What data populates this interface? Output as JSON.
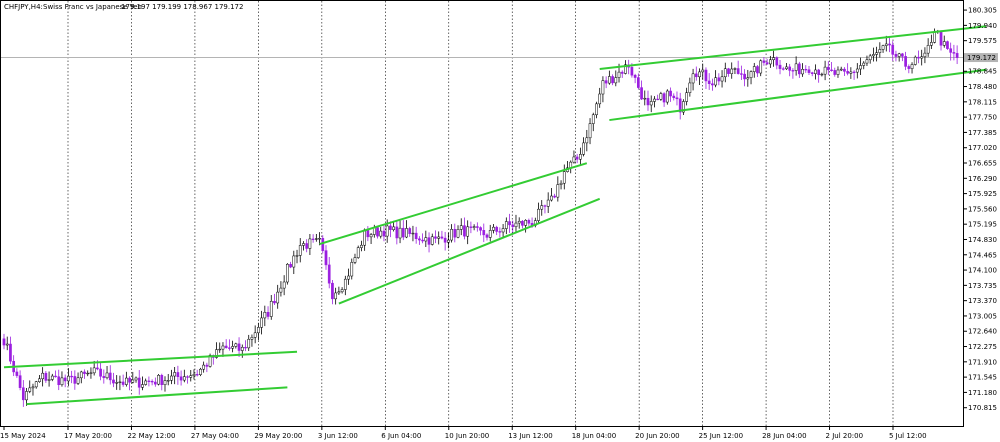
{
  "header": {
    "symbol": "CHFJPY,H4:",
    "description": "Swiss Franc vs Japanese Yen",
    "ohlc": "179.197 179.199 178.967 179.172"
  },
  "chart_data": {
    "type": "candlestick",
    "symbol": "CHFJPY",
    "timeframe": "H4",
    "title": "CHFJPY,H4:  Swiss Franc vs Japanese Yen",
    "last_price": 179.172,
    "last_price_label": "179.172",
    "ylim": [
      170.45,
      180.45
    ],
    "y_ticks": [
      "180.305",
      "179.940",
      "179.575",
      "179.210",
      "178.845",
      "178.480",
      "178.115",
      "177.750",
      "177.385",
      "177.020",
      "176.655",
      "176.290",
      "175.925",
      "175.560",
      "175.195",
      "174.830",
      "174.465",
      "174.100",
      "173.735",
      "173.370",
      "173.005",
      "172.640",
      "172.275",
      "171.910",
      "171.545",
      "171.180",
      "170.815"
    ],
    "x_ticks": [
      "15 May 2024",
      "17 May 20:00",
      "22 May 12:00",
      "27 May 04:00",
      "29 May 20:00",
      "3 Jun 12:00",
      "6 Jun 04:00",
      "10 Jun 20:00",
      "13 Jun 12:00",
      "18 Jun 04:00",
      "20 Jun 20:00",
      "25 Jun 12:00",
      "28 Jun 04:00",
      "2 Jul 20:00",
      "5 Jul 12:00"
    ],
    "grid": "vertical dotted at each date tick",
    "colors": {
      "bull": "#ffffff",
      "bear": "#9b1fe0",
      "outline": "#000000",
      "trendline": "#33cc33",
      "price_line": "#b4b4b4",
      "price_label_bg": "#b4b4b4"
    },
    "waypoints": [
      [
        0,
        172.45
      ],
      [
        3,
        171.75
      ],
      [
        6,
        171.05
      ],
      [
        12,
        171.55
      ],
      [
        20,
        171.45
      ],
      [
        28,
        171.65
      ],
      [
        38,
        171.4
      ],
      [
        46,
        171.45
      ],
      [
        54,
        171.55
      ],
      [
        60,
        171.65
      ],
      [
        68,
        172.25
      ],
      [
        74,
        172.2
      ],
      [
        82,
        173.1
      ],
      [
        88,
        174.1
      ],
      [
        92,
        174.7
      ],
      [
        98,
        174.75
      ],
      [
        102,
        173.55
      ],
      [
        106,
        173.85
      ],
      [
        112,
        174.95
      ],
      [
        118,
        175.05
      ],
      [
        126,
        174.95
      ],
      [
        134,
        174.8
      ],
      [
        142,
        175.05
      ],
      [
        150,
        174.95
      ],
      [
        156,
        175.15
      ],
      [
        164,
        175.25
      ],
      [
        170,
        175.75
      ],
      [
        174,
        176.45
      ],
      [
        178,
        176.75
      ],
      [
        182,
        177.55
      ],
      [
        186,
        178.55
      ],
      [
        190,
        178.75
      ],
      [
        194,
        179.0
      ],
      [
        200,
        177.95
      ],
      [
        206,
        178.3
      ],
      [
        210,
        178.0
      ],
      [
        214,
        178.9
      ],
      [
        220,
        178.6
      ],
      [
        226,
        178.85
      ],
      [
        232,
        178.75
      ],
      [
        238,
        179.2
      ],
      [
        244,
        178.85
      ],
      [
        250,
        178.95
      ],
      [
        256,
        178.8
      ],
      [
        262,
        178.75
      ],
      [
        268,
        179.1
      ],
      [
        274,
        179.4
      ],
      [
        280,
        179.0
      ],
      [
        286,
        179.15
      ],
      [
        289,
        179.85
      ],
      [
        293,
        179.3
      ],
      [
        296,
        179.17
      ]
    ],
    "trendlines": [
      {
        "name": "channel-1-upper",
        "from": {
          "bar": 0,
          "price": 171.78
        },
        "to": {
          "bar": 91,
          "price": 172.15
        }
      },
      {
        "name": "channel-1-lower",
        "from": {
          "bar": 7,
          "price": 170.9
        },
        "to": {
          "bar": 88,
          "price": 171.3
        }
      },
      {
        "name": "channel-2-upper",
        "from": {
          "bar": 98,
          "price": 174.72
        },
        "to": {
          "bar": 181,
          "price": 176.65
        }
      },
      {
        "name": "channel-2-lower",
        "from": {
          "bar": 104,
          "price": 173.3
        },
        "to": {
          "bar": 185,
          "price": 175.8
        }
      },
      {
        "name": "channel-3-upper",
        "from": {
          "bar": 185,
          "price": 178.9
        },
        "to": {
          "bar": 305,
          "price": 179.92
        }
      },
      {
        "name": "channel-3-lower",
        "from": {
          "bar": 188,
          "price": 177.68
        },
        "to": {
          "bar": 305,
          "price": 178.88
        }
      }
    ]
  }
}
